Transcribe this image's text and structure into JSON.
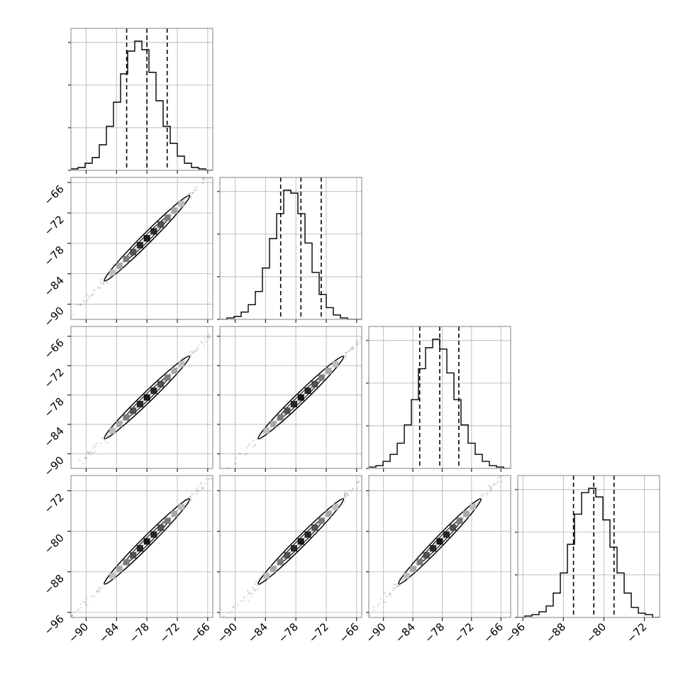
{
  "figure": {
    "background": "#ffffff",
    "axes_color": "#808080",
    "grid_color": "#b0b0b0",
    "line_color": "#000000",
    "grid": true
  },
  "chart_data": {
    "type": "corner",
    "n_params": 4,
    "params": [
      {
        "index": 0,
        "range": [
          -93,
          -65
        ],
        "ticks": [
          -90,
          -84,
          -78,
          -72,
          -66
        ],
        "tick_labels": [
          "−90",
          "−84",
          "−78",
          "−72",
          "−66"
        ],
        "median": -78.0,
        "q16": -82.0,
        "q84": -74.0
      },
      {
        "index": 1,
        "range": [
          -93,
          -65
        ],
        "ticks": [
          -90,
          -84,
          -78,
          -72,
          -66
        ],
        "tick_labels": [
          "−90",
          "−84",
          "−78",
          "−72",
          "−66"
        ],
        "median": -77.0,
        "q16": -81.0,
        "q84": -73.0
      },
      {
        "index": 2,
        "range": [
          -93,
          -64
        ],
        "ticks": [
          -90,
          -84,
          -78,
          -72,
          -66
        ],
        "tick_labels": [
          "−90",
          "−84",
          "−78",
          "−72",
          "−66"
        ],
        "median": -78.5,
        "q16": -82.6,
        "q84": -74.6
      },
      {
        "index": 3,
        "range": [
          -97,
          -69
        ],
        "ticks": [
          -96,
          -88,
          -80,
          -72
        ],
        "tick_labels": [
          "−96",
          "−88",
          "−80",
          "−72"
        ],
        "median": -82.0,
        "q16": -86.0,
        "q84": -78.0
      }
    ],
    "histograms": [
      {
        "param": 0,
        "bins": 20,
        "counts": [
          1,
          2,
          5,
          9,
          18,
          31,
          48,
          68,
          84,
          91,
          85,
          69,
          49,
          31,
          19,
          10,
          5,
          2,
          1,
          0
        ]
      },
      {
        "param": 1,
        "bins": 20,
        "counts": [
          0,
          1,
          2,
          5,
          10,
          19,
          35,
          55,
          72,
          88,
          86,
          72,
          52,
          32,
          17,
          8,
          3,
          1,
          0,
          0
        ]
      },
      {
        "param": 2,
        "bins": 20,
        "counts": [
          1,
          2,
          5,
          10,
          18,
          31,
          49,
          71,
          86,
          92,
          85,
          68,
          49,
          31,
          18,
          10,
          5,
          2,
          1,
          0
        ]
      },
      {
        "param": 3,
        "bins": 20,
        "counts": [
          0,
          1,
          2,
          4,
          8,
          17,
          31,
          51,
          72,
          87,
          90,
          84,
          68,
          49,
          31,
          17,
          7,
          3,
          2,
          0
        ]
      }
    ],
    "scatter_spread": 1.2
  }
}
